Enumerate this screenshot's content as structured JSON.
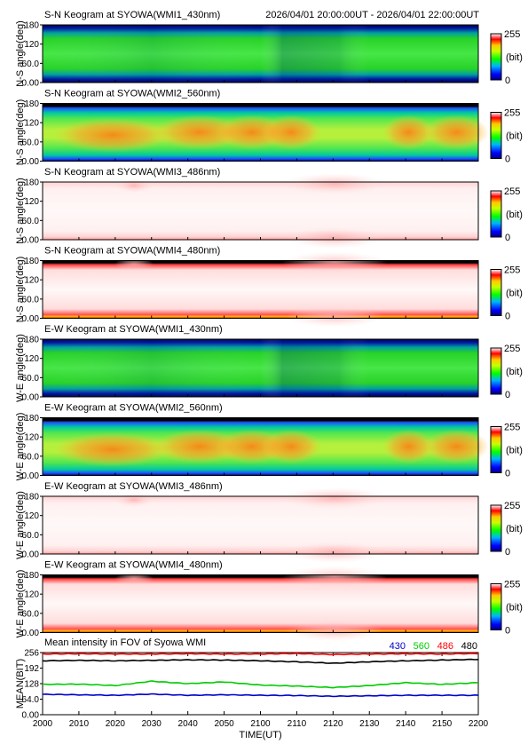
{
  "header": {
    "time_range": "2026/04/01 20:00:00UT - 2026/04/01 22:00:00UT"
  },
  "colorbar": {
    "max_label": "255",
    "unit_label": "(bit)",
    "min_label": "0"
  },
  "keograms": [
    {
      "title": "S-N Keogram at SYOWA(WMI1_430nm)",
      "ylabel": "N-S angle(deg)",
      "yticks": [
        "180",
        "120",
        "60.0",
        "0.00"
      ],
      "style": "green430"
    },
    {
      "title": "S-N Keogram at SYOWA(WMI2_560nm)",
      "ylabel": "N-S angle(deg)",
      "yticks": [
        "180",
        "120",
        "60.0",
        "0.00"
      ],
      "style": "green560"
    },
    {
      "title": "S-N Keogram at SYOWA(WMI3_486nm)",
      "ylabel": "N-S angle(deg)",
      "yticks": [
        "180",
        "120",
        "60.0",
        "0.00"
      ],
      "style": "pale"
    },
    {
      "title": "S-N Keogram at SYOWA(WMI4_480nm)",
      "ylabel": "N-S angle(deg)",
      "yticks": [
        "180",
        "120",
        "60.0",
        "0.00"
      ],
      "style": "pale_edges"
    },
    {
      "title": "E-W Keogram at SYOWA(WMI1_430nm)",
      "ylabel": "W-E angle(deg)",
      "yticks": [
        "180",
        "120",
        "60.0",
        "0.00"
      ],
      "style": "green430"
    },
    {
      "title": "E-W Keogram at SYOWA(WMI2_560nm)",
      "ylabel": "W-E angle(deg)",
      "yticks": [
        "180",
        "120",
        "60.0",
        "0.00"
      ],
      "style": "green560"
    },
    {
      "title": "E-W Keogram at SYOWA(WMI3_486nm)",
      "ylabel": "W-E angle(deg)",
      "yticks": [
        "180",
        "120",
        "60.0",
        "0.00"
      ],
      "style": "pale"
    },
    {
      "title": "E-W Keogram at SYOWA(WMI4_480nm)",
      "ylabel": "W-E angle(deg)",
      "yticks": [
        "180",
        "120",
        "60.0",
        "0.00"
      ],
      "style": "pale_edges"
    }
  ],
  "chart_data": {
    "type": "line",
    "title": "Mean intensity in FOV of Syowa WMI",
    "xlabel": "TIME(UT)",
    "ylabel": "MEAN(BIT)",
    "x": [
      "2000",
      "2010",
      "2020",
      "2030",
      "2040",
      "2050",
      "2100",
      "2110",
      "2120",
      "2130",
      "2140",
      "2150",
      "2200"
    ],
    "yticks": [
      "256",
      "192",
      "128",
      "64.0",
      "0.00"
    ],
    "ylim": [
      0,
      256
    ],
    "series": [
      {
        "name": "430",
        "color": "#0000cc",
        "values": [
          84,
          82,
          80,
          85,
          80,
          82,
          80,
          79,
          76,
          78,
          80,
          80,
          80
        ]
      },
      {
        "name": "560",
        "color": "#00cc00",
        "values": [
          125,
          126,
          120,
          138,
          128,
          135,
          122,
          118,
          112,
          120,
          132,
          125,
          132
        ]
      },
      {
        "name": "486",
        "color": "#ff0000",
        "values": [
          250,
          251,
          250,
          250,
          251,
          250,
          250,
          252,
          248,
          250,
          251,
          250,
          252
        ]
      },
      {
        "name": "480",
        "color": "#000000",
        "values": [
          222,
          224,
          222,
          224,
          226,
          225,
          222,
          218,
          212,
          218,
          222,
          225,
          228
        ]
      }
    ]
  }
}
